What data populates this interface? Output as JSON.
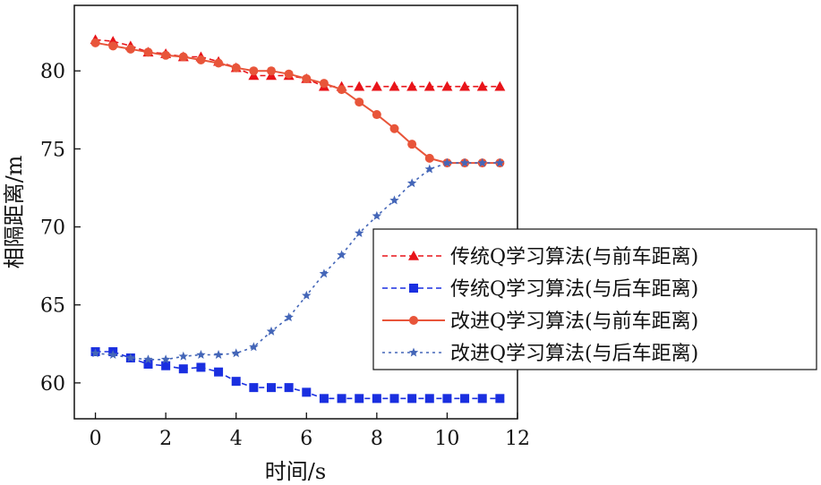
{
  "chart_data": {
    "type": "line",
    "title": "",
    "xlabel": "时间/s",
    "ylabel": "相隔距离/m",
    "xlim": [
      -0.6,
      12
    ],
    "ylim": [
      57.7,
      84.2
    ],
    "xticks": [
      0,
      2,
      4,
      6,
      8,
      10,
      12
    ],
    "yticks": [
      60,
      65,
      70,
      75,
      80
    ],
    "grid": false,
    "legend_position": "right",
    "series": [
      {
        "name": "传统Q学习算法(与前车距离)",
        "color": "#e8141a",
        "line_style": "dashed",
        "marker": "triangle",
        "x": [
          0,
          0.5,
          1,
          1.5,
          2,
          2.5,
          3,
          3.5,
          4,
          4.5,
          5,
          5.5,
          6,
          6.5,
          7,
          7.5,
          8,
          8.5,
          9,
          9.5,
          10,
          10.5,
          11,
          11.5
        ],
        "y": [
          82,
          81.9,
          81.6,
          81.2,
          81.1,
          80.9,
          80.9,
          80.6,
          80.2,
          79.7,
          79.7,
          79.7,
          79.5,
          79.0,
          79,
          79,
          79,
          79,
          79,
          79,
          79,
          79,
          79,
          79
        ]
      },
      {
        "name": "传统Q学习算法(与后车距离)",
        "color": "#1a2fe0",
        "line_style": "dashed",
        "marker": "square",
        "x": [
          0,
          0.5,
          1,
          1.5,
          2,
          2.5,
          3,
          3.5,
          4,
          4.5,
          5,
          5.5,
          6,
          6.5,
          7,
          7.5,
          8,
          8.5,
          9,
          9.5,
          10,
          10.5,
          11,
          11.5
        ],
        "y": [
          62.0,
          62.0,
          61.6,
          61.2,
          61.1,
          60.9,
          61.0,
          60.7,
          60.1,
          59.7,
          59.7,
          59.7,
          59.4,
          59,
          59,
          59,
          59,
          59,
          59,
          59,
          59,
          59,
          59,
          59
        ]
      },
      {
        "name": "改进Q学习算法(与前车距离)",
        "color": "#e8553a",
        "line_style": "solid",
        "marker": "circle",
        "x": [
          0,
          0.5,
          1,
          1.5,
          2,
          2.5,
          3,
          3.5,
          4,
          4.5,
          5,
          5.5,
          6,
          6.5,
          7,
          7.5,
          8,
          8.5,
          9,
          9.5,
          10,
          10.5,
          11,
          11.5
        ],
        "y": [
          81.8,
          81.6,
          81.4,
          81.2,
          81.0,
          80.9,
          80.7,
          80.5,
          80.2,
          80.0,
          80.0,
          79.8,
          79.5,
          79.2,
          78.8,
          78.0,
          77.2,
          76.3,
          75.3,
          74.4,
          74.1,
          74.1,
          74.1,
          74.1
        ]
      },
      {
        "name": "改进Q学习算法(与后车距离)",
        "color": "#4466b8",
        "line_style": "dotted",
        "marker": "star",
        "x": [
          0,
          0.5,
          1,
          1.5,
          2,
          2.5,
          3,
          3.5,
          4,
          4.5,
          5,
          5.5,
          6,
          6.5,
          7,
          7.5,
          8,
          8.5,
          9,
          9.5,
          10,
          10.5,
          11,
          11.5
        ],
        "y": [
          61.9,
          61.8,
          61.6,
          61.5,
          61.5,
          61.7,
          61.8,
          61.8,
          61.9,
          62.3,
          63.3,
          64.2,
          65.6,
          67.0,
          68.2,
          69.6,
          70.7,
          71.7,
          72.8,
          73.7,
          74.1,
          74.1,
          74.1,
          74.1
        ]
      }
    ]
  }
}
